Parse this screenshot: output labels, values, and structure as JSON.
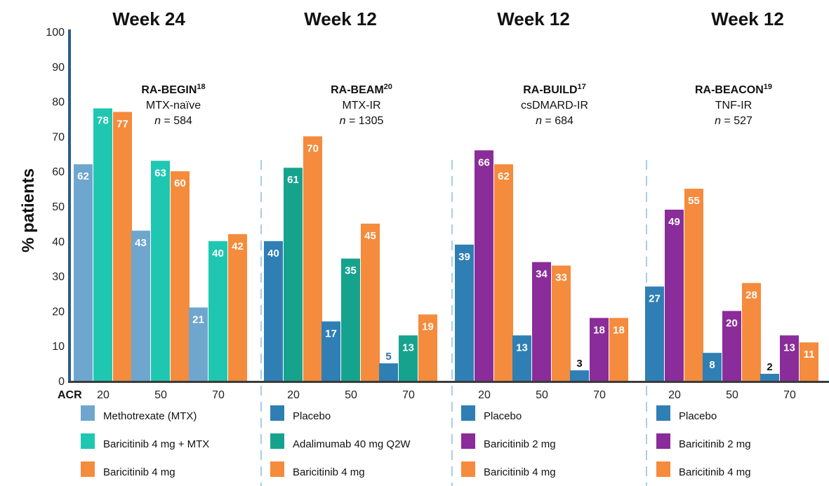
{
  "chart_data": {
    "type": "bar",
    "ylabel": "% patients",
    "ylim": [
      0,
      100
    ],
    "yticks": [
      0,
      10,
      20,
      30,
      40,
      50,
      60,
      70,
      80,
      90,
      100
    ],
    "x_axis_label": "ACR",
    "grid": false,
    "panels": [
      {
        "week": "Week 24",
        "study": "RA-BEGIN",
        "ref": "18",
        "population": "MTX-naïve",
        "n_label": "n",
        "n_value": "= 584",
        "categories": [
          "20",
          "50",
          "70"
        ],
        "series": [
          {
            "name": "Methotrexate (MTX)",
            "color": "#6fa6cd",
            "values": [
              62,
              43,
              21
            ]
          },
          {
            "name": "Baricitinib 4 mg + MTX",
            "color": "#1fc7b1",
            "values": [
              78,
              63,
              40
            ]
          },
          {
            "name": "Baricitinib 4 mg",
            "color": "#f58b3c",
            "values": [
              77,
              60,
              42
            ]
          }
        ]
      },
      {
        "week": "Week 12",
        "study": "RA-BEAM",
        "ref": "20",
        "population": "MTX-IR",
        "n_label": "n",
        "n_value": "= 1305",
        "categories": [
          "20",
          "50",
          "70"
        ],
        "series": [
          {
            "name": "Placebo",
            "color": "#2f7fb5",
            "values": [
              40,
              17,
              5
            ]
          },
          {
            "name": "Adalimumab  40 mg Q2W",
            "color": "#16a38e",
            "values": [
              61,
              35,
              13
            ]
          },
          {
            "name": "Baricitinib 4 mg",
            "color": "#f58b3c",
            "values": [
              70,
              45,
              19
            ]
          }
        ]
      },
      {
        "week": "Week 12",
        "study": "RA-BUILD",
        "ref": "17",
        "population": "csDMARD-IR",
        "n_label": "n",
        "n_value": "= 684",
        "categories": [
          "20",
          "50",
          "70"
        ],
        "series": [
          {
            "name": "Placebo",
            "color": "#2f7fb5",
            "values": [
              39,
              13,
              3
            ]
          },
          {
            "name": "Baricitinib 2 mg",
            "color": "#8a2c99",
            "values": [
              66,
              34,
              18
            ]
          },
          {
            "name": "Baricitinib 4 mg",
            "color": "#f58b3c",
            "values": [
              62,
              33,
              18
            ]
          }
        ]
      },
      {
        "week": "Week 12",
        "study": "RA-BEACON",
        "ref": "19",
        "population": "TNF-IR",
        "n_label": "n",
        "n_value": "= 527",
        "categories": [
          "20",
          "50",
          "70"
        ],
        "series": [
          {
            "name": "Placebo",
            "color": "#2f7fb5",
            "values": [
              27,
              8,
              2
            ]
          },
          {
            "name": "Baricitinib 2 mg",
            "color": "#8a2c99",
            "values": [
              49,
              20,
              13
            ]
          },
          {
            "name": "Baricitinib 4 mg",
            "color": "#f58b3c",
            "values": [
              55,
              28,
              11
            ]
          }
        ]
      }
    ]
  }
}
